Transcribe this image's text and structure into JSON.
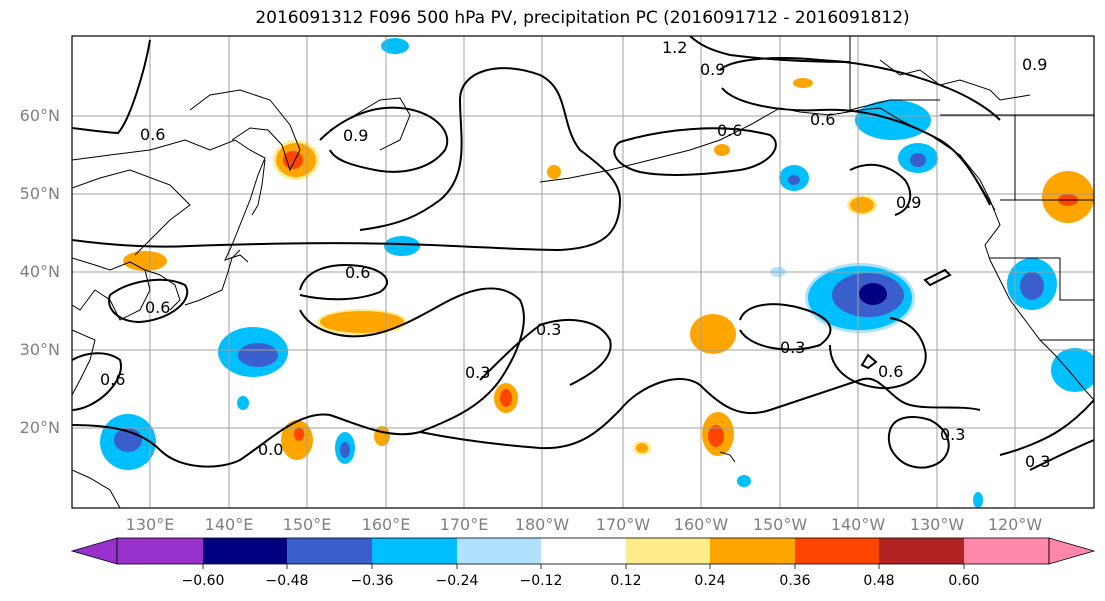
{
  "title": "2016091312 F096 500 hPa PV, precipitation PC (2016091712 - 2016091812)",
  "lat_labels": [
    "60°N",
    "50°N",
    "40°N",
    "30°N",
    "20°N"
  ],
  "lon_labels": [
    "130°E",
    "140°E",
    "150°E",
    "160°E",
    "170°E",
    "180°W",
    "170°W",
    "160°W",
    "150°W",
    "140°W",
    "130°W",
    "120°W"
  ],
  "colorbar": {
    "ticks": [
      "−0.60",
      "−0.48",
      "−0.36",
      "−0.24",
      "−0.12",
      "0.12",
      "0.24",
      "0.36",
      "0.48",
      "0.60"
    ],
    "colors": [
      "#9932cc",
      "#000080",
      "#3a5fcd",
      "#00bfff",
      "#b0e2ff",
      "#ffffff",
      "#ffec8b",
      "#ffa500",
      "#ff4500",
      "#b22222",
      "#ff88aa"
    ]
  },
  "contour_labels": [
    "1.2",
    "0.9",
    "0.9",
    "0.6",
    "0.9",
    "0.6",
    "0.9",
    "0.6",
    "0.6",
    "0.6",
    "0.3",
    "0.3",
    "0.3",
    "0.6",
    "0.3",
    "0.3",
    "0.6",
    "0.0"
  ]
}
